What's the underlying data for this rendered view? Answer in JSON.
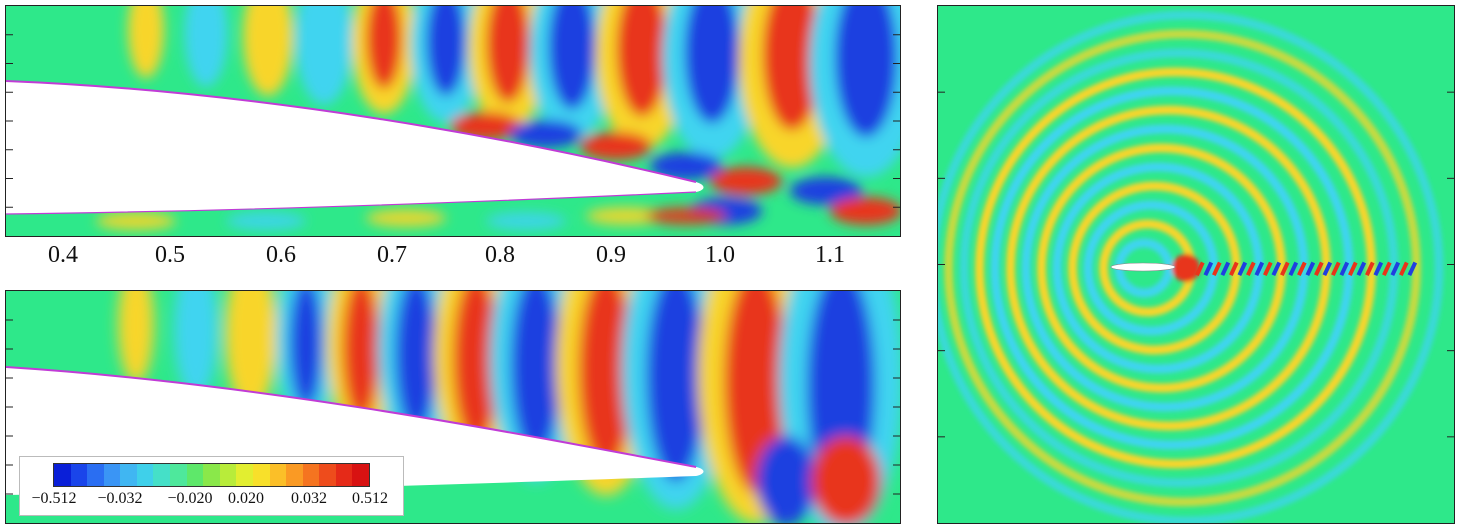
{
  "top_panel": {
    "x_tick_labels": [
      "0.4",
      "0.5",
      "0.6",
      "0.7",
      "0.8",
      "0.9",
      "1.0",
      "1.1"
    ]
  },
  "legend": {
    "labels": [
      "−0.512",
      "−0.032",
      "−0.020",
      "0.020",
      "0.032",
      "0.512"
    ],
    "colors": [
      "#0a1fd8",
      "#1a45ea",
      "#2a6ef2",
      "#3a95f5",
      "#40b6f2",
      "#3fd0ea",
      "#45e0c8",
      "#4ee89c",
      "#5ee86a",
      "#8ae84a",
      "#b8ec3a",
      "#e2ee30",
      "#f8e02a",
      "#fbbf28",
      "#fa9a24",
      "#f57420",
      "#ee4c1c",
      "#e52a18",
      "#d81212"
    ]
  },
  "colors": {
    "background": "#2ee88a",
    "airfoil": "#ffffff",
    "surface_line": "#c13bd6",
    "hot": "#e8341a",
    "warm": "#f8d52a",
    "cool": "#3fd4f0",
    "cold": "#1f3fe0"
  }
}
